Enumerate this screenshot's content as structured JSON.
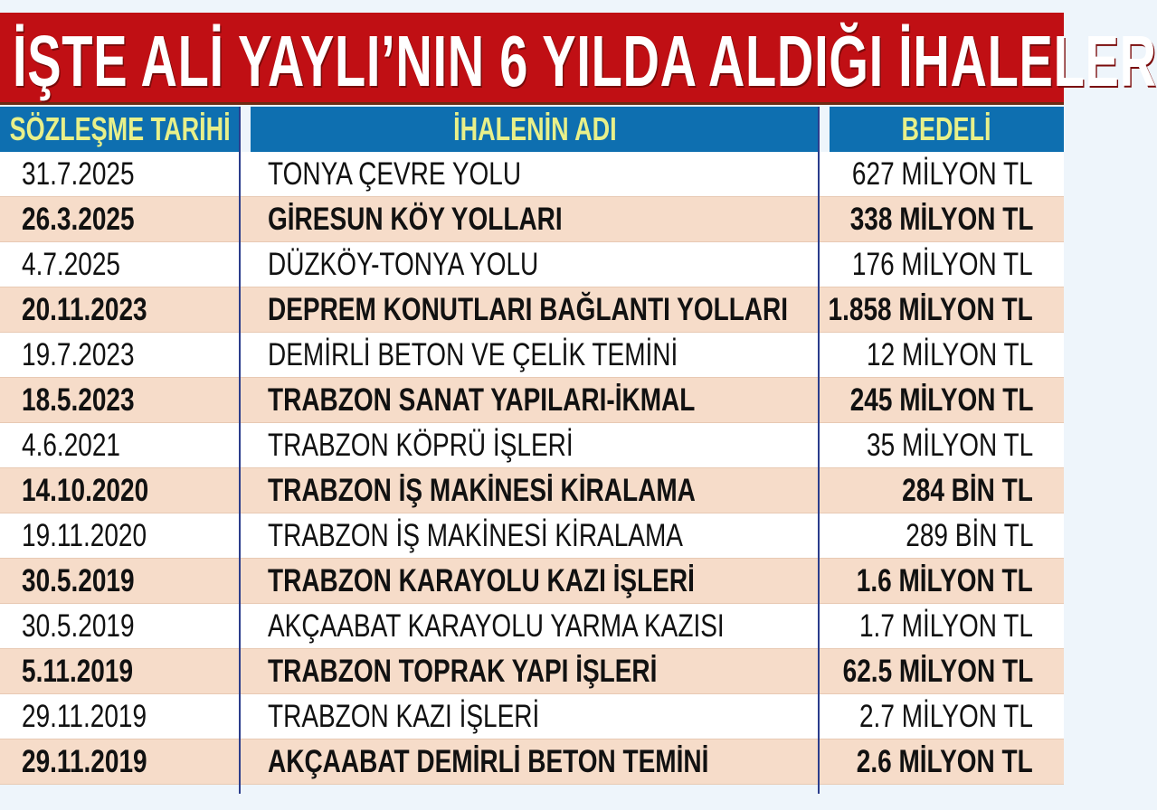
{
  "title": "İŞTE ALİ YAYLI’NIN 6 YILDA ALDIĞI İHALELER",
  "colors": {
    "title_bg": "#c00f14",
    "header_bg": "#0e6fb0",
    "header_text": "#e8f08a",
    "alt_row": "#f6dcc9"
  },
  "chart_data": {
    "type": "table",
    "title": "İŞTE ALİ YAYLI’NIN 6 YILDA ALDIĞI İHALELER",
    "columns": [
      "SÖZLEŞME TARİHİ",
      "İHALENİN ADI",
      "BEDELİ"
    ],
    "rows": [
      [
        "31.7.2025",
        "TONYA ÇEVRE YOLU",
        "627 MİLYON TL"
      ],
      [
        "26.3.2025",
        "GİRESUN KÖY YOLLARI",
        "338 MİLYON TL"
      ],
      [
        "4.7.2025",
        "DÜZKÖY-TONYA YOLU",
        "176 MİLYON TL"
      ],
      [
        "20.11.2023",
        "DEPREM KONUTLARI BAĞLANTI YOLLARI",
        "1.858 MİLYON TL"
      ],
      [
        "19.7.2023",
        "DEMİRLİ BETON VE ÇELİK TEMİNİ",
        "12 MİLYON TL"
      ],
      [
        "18.5.2023",
        "TRABZON SANAT YAPILARI-İKMAL",
        "245 MİLYON TL"
      ],
      [
        "4.6.2021",
        "TRABZON KÖPRÜ İŞLERİ",
        "35 MİLYON TL"
      ],
      [
        "14.10.2020",
        "TRABZON İŞ MAKİNESİ KİRALAMA",
        "284 BİN TL"
      ],
      [
        "19.11.2020",
        "TRABZON İŞ MAKİNESİ KİRALAMA",
        "289 BİN TL"
      ],
      [
        "30.5.2019",
        "TRABZON KARAYOLU KAZI İŞLERİ",
        "1.6 MİLYON TL"
      ],
      [
        "30.5.2019",
        "AKÇAABAT KARAYOLU YARMA KAZISI",
        "1.7 MİLYON TL"
      ],
      [
        "5.11.2019",
        "TRABZON TOPRAK YAPI İŞLERİ",
        "62.5 MİLYON TL"
      ],
      [
        "29.11.2019",
        "TRABZON KAZI İŞLERİ",
        "2.7 MİLYON TL"
      ],
      [
        "29.11.2019",
        "AKÇAABAT DEMİRLİ BETON TEMİNİ",
        "2.6 MİLYON TL"
      ]
    ]
  }
}
